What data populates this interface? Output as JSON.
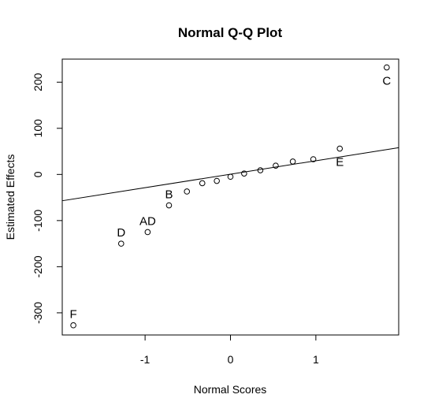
{
  "chart_data": {
    "type": "scatter",
    "title": "Normal Q-Q Plot",
    "xlabel": "Normal Scores",
    "ylabel": "Estimated Effects",
    "xlim": [
      -1.97,
      1.97
    ],
    "ylim": [
      -348,
      250
    ],
    "x_ticks": [
      -1,
      0,
      1
    ],
    "y_ticks": [
      -300,
      -200,
      -100,
      0,
      100,
      200
    ],
    "grid": false,
    "reference_line": {
      "x1": -1.97,
      "y1": -57,
      "x2": 1.97,
      "y2": 58
    },
    "points": [
      {
        "x": -1.84,
        "y": -327,
        "label": "F"
      },
      {
        "x": -1.28,
        "y": -150,
        "label": "D"
      },
      {
        "x": -0.97,
        "y": -125,
        "label": "AD"
      },
      {
        "x": -0.72,
        "y": -67,
        "label": "B"
      },
      {
        "x": -0.51,
        "y": -37,
        "label": ""
      },
      {
        "x": -0.33,
        "y": -19,
        "label": ""
      },
      {
        "x": -0.16,
        "y": -14,
        "label": ""
      },
      {
        "x": 0.0,
        "y": -5,
        "label": ""
      },
      {
        "x": 0.16,
        "y": 2,
        "label": ""
      },
      {
        "x": 0.35,
        "y": 9,
        "label": ""
      },
      {
        "x": 0.53,
        "y": 19,
        "label": ""
      },
      {
        "x": 0.73,
        "y": 28,
        "label": ""
      },
      {
        "x": 0.97,
        "y": 33,
        "label": ""
      },
      {
        "x": 1.28,
        "y": 56,
        "label": "E"
      },
      {
        "x": 1.83,
        "y": 232,
        "label": "C"
      }
    ]
  }
}
